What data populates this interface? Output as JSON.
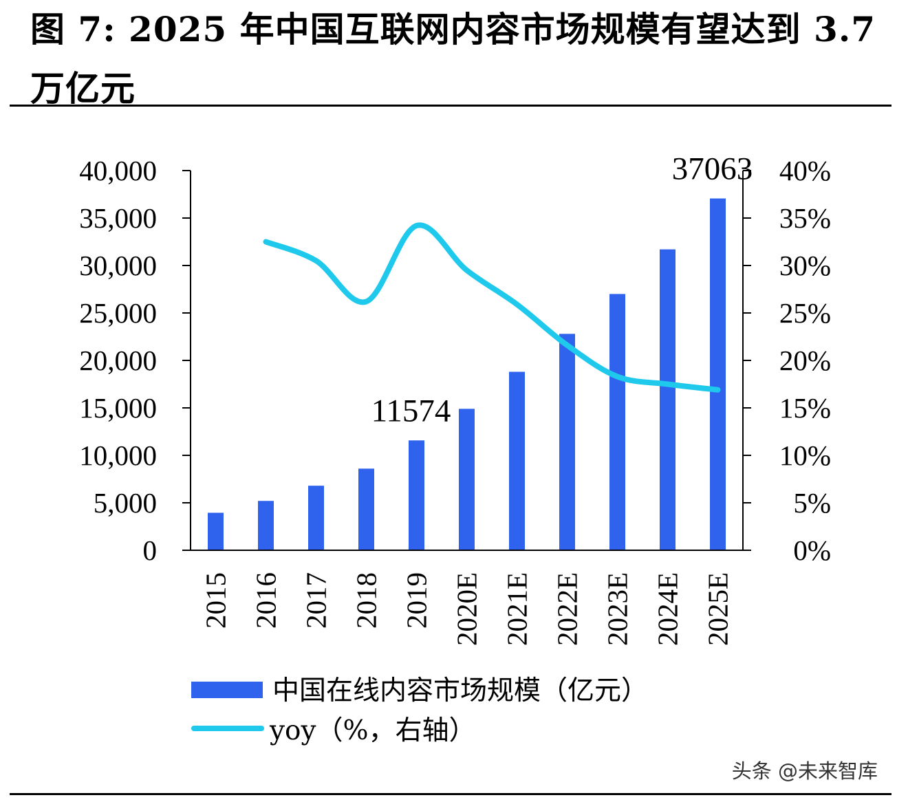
{
  "title": "图 7: 2025 年中国互联网内容市场规模有望达到 3.7 万亿元",
  "watermark": "头条 @未来智库",
  "colors": {
    "bar": "#2F63EE",
    "line": "#1FC9EC",
    "axis": "#000000"
  },
  "chart_data": {
    "type": "bar",
    "categories": [
      "2015",
      "2016",
      "2017",
      "2018",
      "2019",
      "2020E",
      "2021E",
      "2022E",
      "2023E",
      "2024E",
      "2025E"
    ],
    "series": [
      {
        "name": "中国在线内容市场规模（亿元）",
        "type": "bar",
        "axis": "left",
        "values": [
          3950,
          5200,
          6800,
          8600,
          11574,
          14900,
          18800,
          22800,
          27000,
          31700,
          37063
        ]
      },
      {
        "name": "yoy（%，右轴）",
        "type": "line",
        "axis": "right",
        "values": [
          null,
          32.5,
          30.5,
          26.2,
          34.2,
          29.5,
          25.9,
          21.6,
          18.3,
          17.5,
          16.9
        ]
      }
    ],
    "data_labels": [
      {
        "category": "2019",
        "text": "11574"
      },
      {
        "category": "2025E",
        "text": "37063"
      }
    ],
    "y_left": {
      "ylim": [
        0,
        40000
      ],
      "ticks": [
        "0",
        "5,000",
        "10,000",
        "15,000",
        "20,000",
        "25,000",
        "30,000",
        "35,000",
        "40,000"
      ]
    },
    "y_right": {
      "ylim": [
        0,
        40
      ],
      "ticks": [
        "0%",
        "5%",
        "10%",
        "15%",
        "20%",
        "25%",
        "30%",
        "35%",
        "40%"
      ]
    },
    "legend": [
      "中国在线内容市场规模（亿元）",
      "yoy（%，右轴）"
    ],
    "legend_position": "bottom-left",
    "grid": false
  }
}
